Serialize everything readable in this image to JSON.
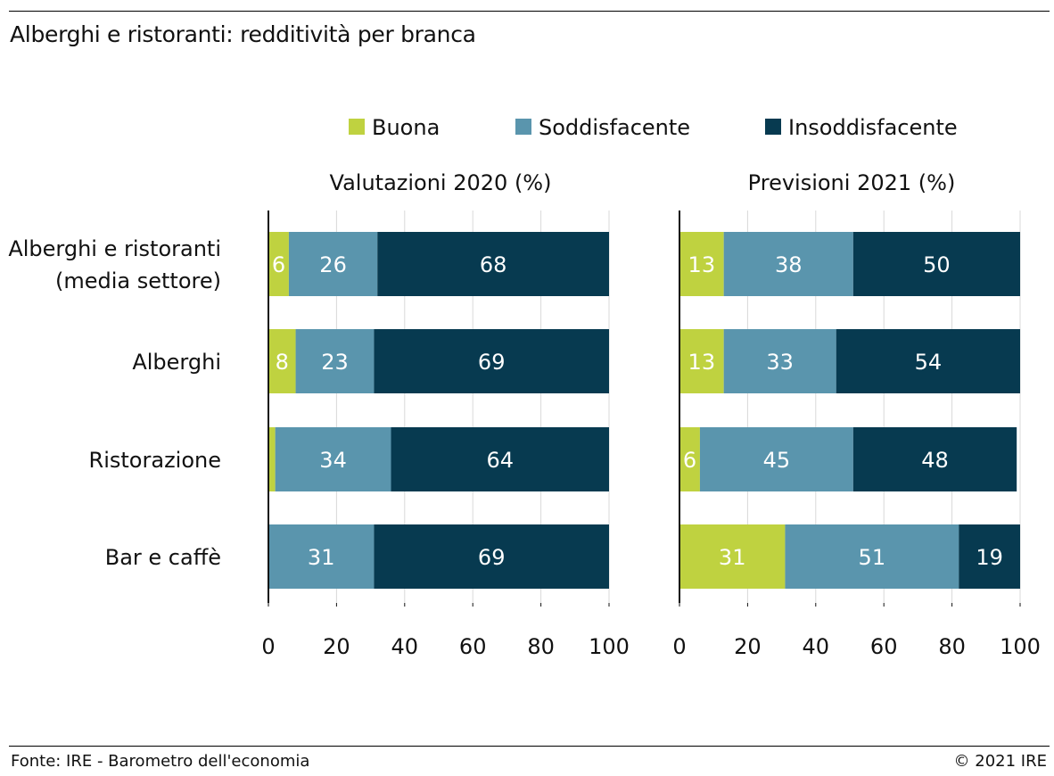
{
  "title": "Alberghi e ristoranti: redditività per branca",
  "footer": {
    "source": "Fonte: IRE - Barometro dell'economia",
    "copyright": "© 2021 IRE"
  },
  "colors": {
    "Buona": "#bfd240",
    "Soddisfacente": "#5a95ad",
    "Insoddisfacente": "#073a50"
  },
  "chart_data": {
    "type": "bar",
    "orientation": "horizontal",
    "stacked": true,
    "legend_position": "top",
    "categories": [
      [
        "Alberghi e ristoranti",
        "(media settore)"
      ],
      [
        "Alberghi"
      ],
      [
        "Ristorazione"
      ],
      [
        "Bar e caffè"
      ]
    ],
    "series_names": [
      "Buona",
      "Soddisfacente",
      "Insoddisfacente"
    ],
    "xlim": [
      0,
      100
    ],
    "xticks": [
      0,
      20,
      40,
      60,
      80,
      100
    ],
    "grid": "vertical",
    "panels": [
      {
        "title": "Valutazioni 2020 (%)",
        "series": [
          {
            "name": "Buona",
            "values": [
              6,
              8,
              2,
              0
            ],
            "labels": [
              "6",
              "8",
              "",
              ""
            ]
          },
          {
            "name": "Soddisfacente",
            "values": [
              26,
              23,
              34,
              31
            ],
            "labels": [
              "26",
              "23",
              "34",
              "31"
            ]
          },
          {
            "name": "Insoddisfacente",
            "values": [
              68,
              69,
              64,
              69
            ],
            "labels": [
              "68",
              "69",
              "64",
              "69"
            ]
          }
        ]
      },
      {
        "title": "Previsioni 2021 (%)",
        "series": [
          {
            "name": "Buona",
            "values": [
              13,
              13,
              6,
              31
            ],
            "labels": [
              "13",
              "13",
              "6",
              "31"
            ]
          },
          {
            "name": "Soddisfacente",
            "values": [
              38,
              33,
              45,
              51
            ],
            "labels": [
              "38",
              "33",
              "45",
              "51"
            ]
          },
          {
            "name": "Insoddisfacente",
            "values": [
              50,
              54,
              48,
              19
            ],
            "labels": [
              "50",
              "54",
              "48",
              "19"
            ]
          }
        ]
      }
    ]
  }
}
